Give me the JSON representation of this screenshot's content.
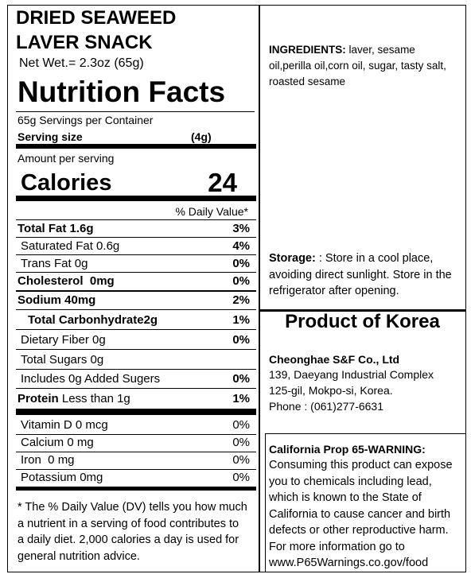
{
  "product": {
    "name_line1": "DRIED SEAWEED",
    "name_line2": "LAVER SNACK",
    "net_weight": "Net Wet.= 2.3oz (65g)"
  },
  "nutrition": {
    "title": "Nutrition Facts",
    "servings": "65g Servings per Container",
    "serving_size_label": "Serving size",
    "serving_size_value": "(4g)",
    "amount_per_serving": "Amount per serving",
    "calories_label": "Calories",
    "calories_value": "24",
    "daily_value_header": "% Daily Value*",
    "rows": [
      {
        "label": "Total Fat 1.6g",
        "dv": "3%"
      },
      {
        "label": "Saturated Fat 0.6g",
        "dv": "4%"
      },
      {
        "label": "Trans Fat 0g",
        "dv": "0%"
      },
      {
        "label": "Cholesterol  0mg",
        "dv": "0%"
      },
      {
        "label": "Sodium 40mg",
        "dv": "2%"
      },
      {
        "label": "Total Carbonhydrate2g",
        "dv": "1%"
      },
      {
        "label": "Dietary Fiber 0g",
        "dv": "0%"
      },
      {
        "label": "Total Sugars 0g"
      },
      {
        "label": "Includes 0g Added Sugers",
        "dv": "0%"
      },
      {
        "label": "Protein",
        "detail": "Less than 1g",
        "dv": "1%"
      }
    ],
    "vitamins": [
      {
        "label": "Vitamin D 0 mcg",
        "dv": "0%"
      },
      {
        "label": "Calcium 0 mg",
        "dv": "0%"
      },
      {
        "label": "Iron  0 mg",
        "dv": "0%"
      },
      {
        "label": "Potassium 0mg",
        "dv": "0%"
      }
    ],
    "footnote": "* The % Daily Value (DV) tells you how much a nutrient in a serving of food contributes to a daily diet. 2,000 calories a day is used for general nutrition advice."
  },
  "ingredients": {
    "label": "INGREDIENTS:",
    "text": "laver, sesame oil,perilla oil,corn oil, sugar, tasty salt, roasted sesame"
  },
  "storage": {
    "label": "Storage:",
    "text": ": Store in a cool place, avoiding direct sunlight. Store in the refrigerator after opening."
  },
  "origin": "Product of Korea",
  "company": {
    "name": "Cheonghae S&F Co., Ltd",
    "address_line1": "139, Daeyang Industrial Complex",
    "address_line2": "125-gil, Mokpo-si, Korea.",
    "phone": "Phone : (061)277-6631"
  },
  "warning": {
    "title": "California Prop 65-WARNING:",
    "text": "Consuming this product can expose you to chemicals including lead, which is known to the State of California  to cause cancer and birth defects or other reproductive harm. For more information go to www.P65Warnings.co.gov/food"
  }
}
